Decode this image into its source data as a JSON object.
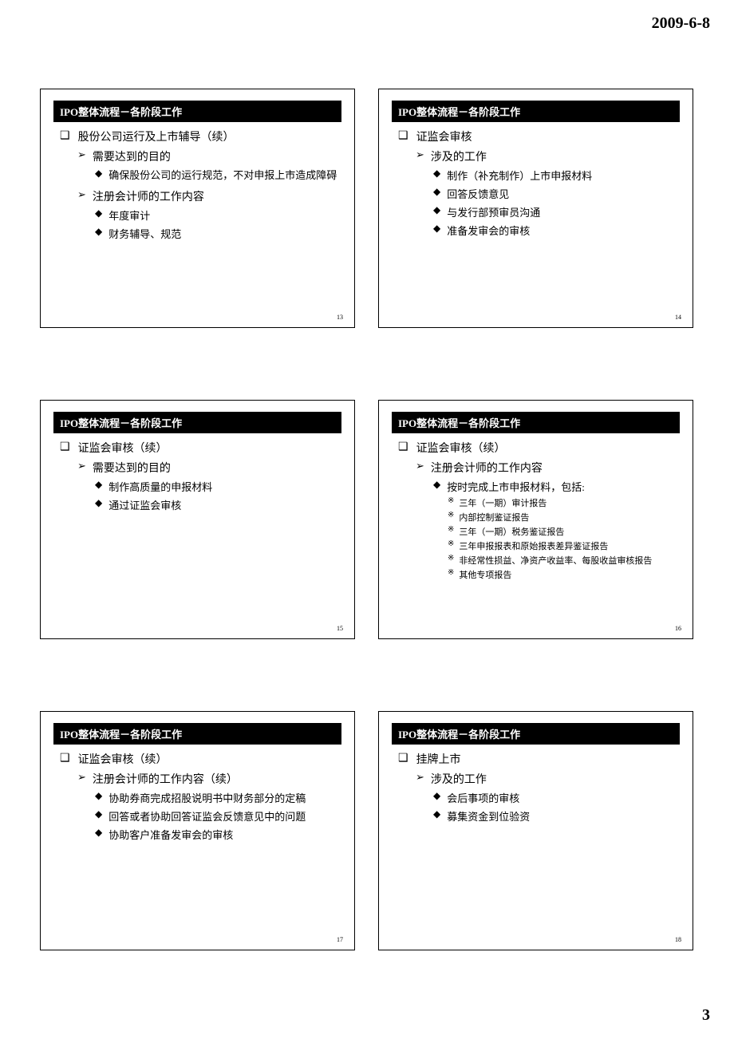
{
  "header": {
    "date": "2009-6-8"
  },
  "footer": {
    "page": "3"
  },
  "bullets": {
    "square": "❑",
    "arrow": "➢",
    "diamond": "◆",
    "star": "※"
  },
  "slide_title_prefix": "IPO",
  "slide_title_suffix": "整体流程－各阶段工作",
  "slides": [
    {
      "number": "13",
      "lv1": "股份公司运行及上市辅导（续）",
      "sections": [
        {
          "lv2": "需要达到的目的",
          "lv3": [
            {
              "text": "确保股份公司的运行规范，不对申报上市造成障碍"
            }
          ]
        },
        {
          "lv2": "注册会计师的工作内容",
          "lv3": [
            {
              "text": "年度审计"
            },
            {
              "text": "财务辅导、规范"
            }
          ]
        }
      ]
    },
    {
      "number": "14",
      "lv1": "证监会审核",
      "sections": [
        {
          "lv2": "涉及的工作",
          "lv3": [
            {
              "text": "制作（补充制作）上市申报材料"
            },
            {
              "text": "回答反馈意见"
            },
            {
              "text": "与发行部预审员沟通"
            },
            {
              "text": "准备发审会的审核"
            }
          ]
        }
      ]
    },
    {
      "number": "15",
      "lv1": "证监会审核（续）",
      "sections": [
        {
          "lv2": "需要达到的目的",
          "lv3": [
            {
              "text": "制作高质量的申报材料"
            },
            {
              "text": "通过证监会审核"
            }
          ]
        }
      ]
    },
    {
      "number": "16",
      "lv1": "证监会审核（续）",
      "sections": [
        {
          "lv2": "注册会计师的工作内容",
          "lv3": [
            {
              "text": "按时完成上市申报材料，包括:",
              "lv4": [
                "三年（一期）审计报告",
                "内部控制鉴证报告",
                "三年（一期）税务鉴证报告",
                "三年申报报表和原始报表差异鉴证报告",
                "非经常性损益、净资产收益率、每股收益审核报告",
                "其他专项报告"
              ]
            }
          ]
        }
      ]
    },
    {
      "number": "17",
      "lv1": "证监会审核（续）",
      "sections": [
        {
          "lv2": "注册会计师的工作内容（续）",
          "lv3": [
            {
              "text": "协助券商完成招股说明书中财务部分的定稿"
            },
            {
              "text": "回答或者协助回答证监会反馈意见中的问题"
            },
            {
              "text": "协助客户准备发审会的审核"
            }
          ]
        }
      ]
    },
    {
      "number": "18",
      "lv1": "挂牌上市",
      "sections": [
        {
          "lv2": "涉及的工作",
          "lv3": [
            {
              "text": "会后事项的审核"
            },
            {
              "text": "募集资金到位验资"
            }
          ]
        }
      ]
    }
  ]
}
